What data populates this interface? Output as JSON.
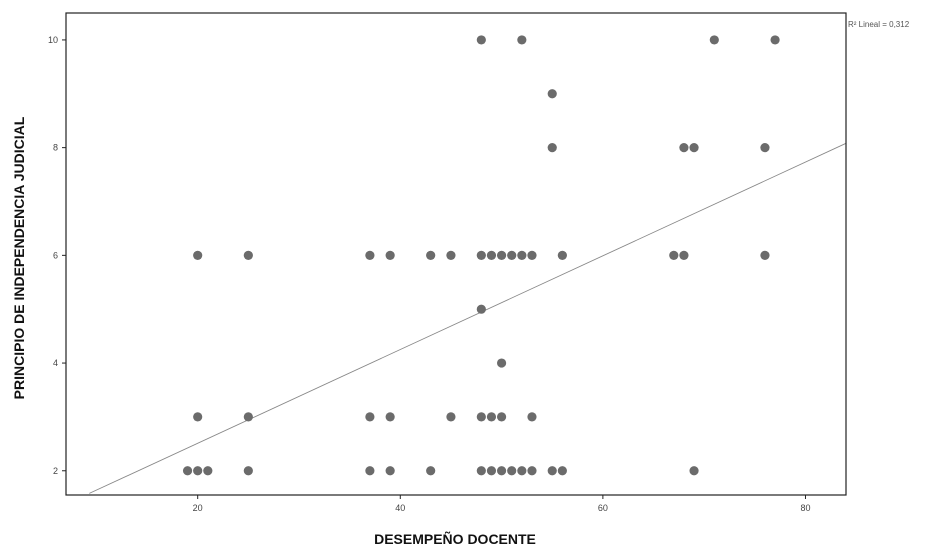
{
  "chart_data": {
    "type": "scatter",
    "xlabel": "DESEMPEÑO DOCENTE",
    "ylabel": "PRINCIPIO DE INDEPENDENCIA JUDICIAL",
    "xlim": [
      7,
      84
    ],
    "ylim": [
      1.55,
      10.5
    ],
    "xticks": [
      20,
      40,
      60,
      80
    ],
    "yticks": [
      2,
      4,
      6,
      8,
      10
    ],
    "grid": false,
    "fit_line": {
      "label": "R² Lineal = 0,312",
      "x": [
        9.3,
        84
      ],
      "y": [
        1.58,
        8.08
      ]
    },
    "points": [
      [
        48,
        10
      ],
      [
        52,
        10
      ],
      [
        71,
        10
      ],
      [
        77,
        10
      ],
      [
        55,
        9
      ],
      [
        55,
        8
      ],
      [
        68,
        8
      ],
      [
        69,
        8
      ],
      [
        76,
        8
      ],
      [
        20,
        6
      ],
      [
        25,
        6
      ],
      [
        37,
        6
      ],
      [
        39,
        6
      ],
      [
        43,
        6
      ],
      [
        45,
        6
      ],
      [
        48,
        6
      ],
      [
        49,
        6
      ],
      [
        50,
        6
      ],
      [
        51,
        6
      ],
      [
        52,
        6
      ],
      [
        53,
        6
      ],
      [
        56,
        6
      ],
      [
        67,
        6
      ],
      [
        68,
        6
      ],
      [
        76,
        6
      ],
      [
        48,
        5
      ],
      [
        50,
        4
      ],
      [
        20,
        3
      ],
      [
        25,
        3
      ],
      [
        37,
        3
      ],
      [
        39,
        3
      ],
      [
        45,
        3
      ],
      [
        48,
        3
      ],
      [
        49,
        3
      ],
      [
        50,
        3
      ],
      [
        53,
        3
      ],
      [
        19,
        2
      ],
      [
        20,
        2
      ],
      [
        21,
        2
      ],
      [
        25,
        2
      ],
      [
        37,
        2
      ],
      [
        39,
        2
      ],
      [
        43,
        2
      ],
      [
        48,
        2
      ],
      [
        49,
        2
      ],
      [
        50,
        2
      ],
      [
        51,
        2
      ],
      [
        52,
        2
      ],
      [
        53,
        2
      ],
      [
        55,
        2
      ],
      [
        56,
        2
      ],
      [
        69,
        2
      ]
    ],
    "colors": {
      "marker": "#6b6b6b",
      "fit_line": "#888888",
      "frame": "#222222"
    }
  }
}
